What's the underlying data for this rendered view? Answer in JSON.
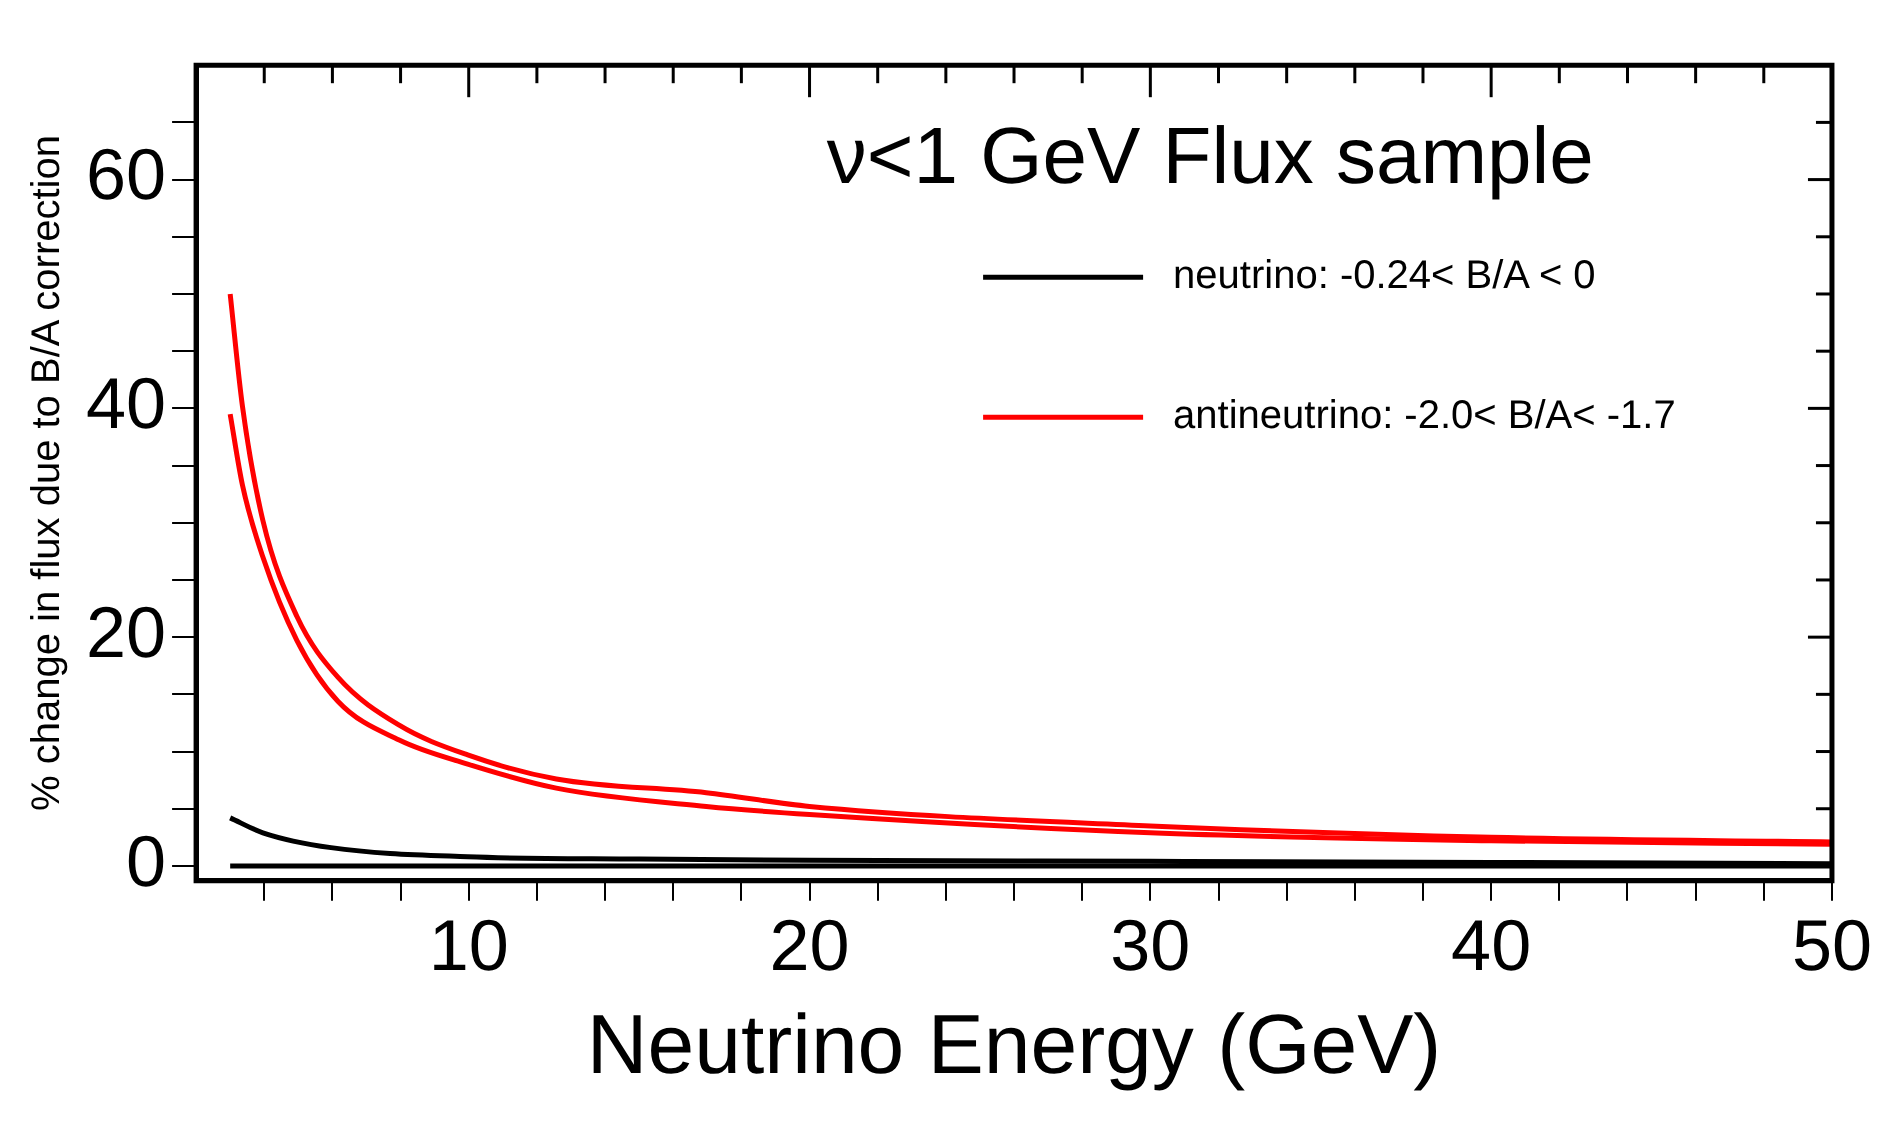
{
  "chart_data": {
    "type": "line",
    "title": "ν<1 GeV Flux sample",
    "xlabel": "Neutrino Energy (GeV)",
    "ylabel": "% change in flux due to B/A correction",
    "xlim": [
      2,
      50
    ],
    "ylim": [
      -1.3,
      70
    ],
    "xticks": [
      {
        "value": 4,
        "label": null
      },
      {
        "value": 6,
        "label": null
      },
      {
        "value": 8,
        "label": null
      },
      10,
      {
        "value": 12,
        "label": null
      },
      {
        "value": 14,
        "label": null
      },
      {
        "value": 16,
        "label": null
      },
      {
        "value": 18,
        "label": null
      },
      20,
      {
        "value": 22,
        "label": null
      },
      {
        "value": 24,
        "label": null
      },
      {
        "value": 26,
        "label": null
      },
      {
        "value": 28,
        "label": null
      },
      30,
      {
        "value": 32,
        "label": null
      },
      {
        "value": 34,
        "label": null
      },
      {
        "value": 36,
        "label": null
      },
      {
        "value": 38,
        "label": null
      },
      40,
      {
        "value": 42,
        "label": null
      },
      {
        "value": 44,
        "label": null
      },
      {
        "value": 46,
        "label": null
      },
      {
        "value": 48,
        "label": null
      },
      50
    ],
    "yticks": [
      0,
      {
        "value": 5,
        "label": null
      },
      {
        "value": 10,
        "label": null
      },
      {
        "value": 15,
        "label": null
      },
      20,
      {
        "value": 25,
        "label": null
      },
      {
        "value": 30,
        "label": null
      },
      {
        "value": 35,
        "label": null
      },
      40,
      {
        "value": 45,
        "label": null
      },
      {
        "value": 50,
        "label": null
      },
      {
        "value": 55,
        "label": null
      },
      60,
      {
        "value": 65,
        "label": null
      }
    ],
    "grid": false,
    "legend": "top right",
    "marker": "none",
    "line_style": "solid",
    "series": [
      {
        "name": "neutrino: -0.24< B/A < 0",
        "color": "#000000",
        "x": [
          3,
          3.96,
          5.96,
          9.97,
          15,
          20,
          30,
          40,
          50
        ],
        "values": [
          4.2,
          2.9,
          1.6,
          0.8,
          0.6,
          0.5,
          0.4,
          0.3,
          0.2
        ]
      },
      {
        "color": "#000000",
        "x": [
          3,
          10,
          20,
          30,
          40,
          50
        ],
        "values": [
          0,
          0,
          0,
          0,
          0,
          0
        ]
      },
      {
        "name": "antineutrino: -2.0< B/A< -1.7",
        "color": "#ff0000",
        "x": [
          3,
          3.36,
          3.96,
          4.96,
          6.16,
          7.96,
          9.97,
          12.57,
          16.97,
          20,
          30,
          40,
          50
        ],
        "values": [
          50,
          40.2,
          30.2,
          21.8,
          16.5,
          12.3,
          9.7,
          7.6,
          6.4,
          5.2,
          3.5,
          2.5,
          2.1
        ]
      },
      {
        "color": "#ff0000",
        "x": [
          3,
          3.36,
          3.96,
          4.96,
          6.16,
          7.96,
          9.97,
          12.57,
          16.97,
          20,
          30,
          40,
          50
        ],
        "values": [
          39.5,
          33.3,
          27,
          19.7,
          14.4,
          11,
          8.9,
          6.8,
          5.2,
          4.5,
          2.9,
          2.2,
          1.9
        ]
      }
    ]
  }
}
